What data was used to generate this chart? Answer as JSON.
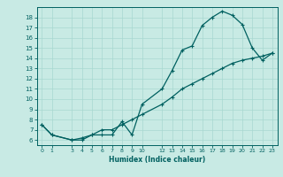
{
  "xlabel": "Humidex (Indice chaleur)",
  "bg_color": "#c8eae4",
  "grid_color": "#a8d8d0",
  "line_color": "#006060",
  "x_upper": [
    0,
    1,
    3,
    4,
    5,
    6,
    7,
    8,
    9,
    10,
    12,
    13,
    14,
    15,
    16,
    17,
    18,
    19,
    20,
    21,
    22,
    23
  ],
  "y_upper": [
    7.5,
    6.5,
    6.0,
    6.0,
    6.5,
    6.5,
    6.5,
    7.8,
    6.5,
    9.5,
    11.0,
    12.8,
    14.8,
    15.2,
    17.2,
    18.0,
    18.6,
    18.2,
    17.3,
    15.0,
    13.8,
    14.5
  ],
  "x_lower": [
    0,
    1,
    3,
    4,
    5,
    6,
    7,
    8,
    9,
    10,
    12,
    13,
    14,
    15,
    16,
    17,
    18,
    19,
    20,
    21,
    22,
    23
  ],
  "y_lower": [
    7.5,
    6.5,
    6.0,
    6.2,
    6.5,
    7.0,
    7.0,
    7.5,
    8.0,
    8.5,
    9.5,
    10.2,
    11.0,
    11.5,
    12.0,
    12.5,
    13.0,
    13.5,
    13.8,
    14.0,
    14.2,
    14.5
  ],
  "xlim": [
    -0.5,
    23.5
  ],
  "ylim": [
    5.5,
    19.0
  ],
  "yticks": [
    6,
    7,
    8,
    9,
    10,
    11,
    12,
    13,
    14,
    15,
    16,
    17,
    18
  ],
  "xticks": [
    0,
    1,
    3,
    4,
    5,
    6,
    7,
    8,
    9,
    10,
    12,
    13,
    14,
    15,
    16,
    17,
    18,
    19,
    20,
    21,
    22,
    23
  ]
}
